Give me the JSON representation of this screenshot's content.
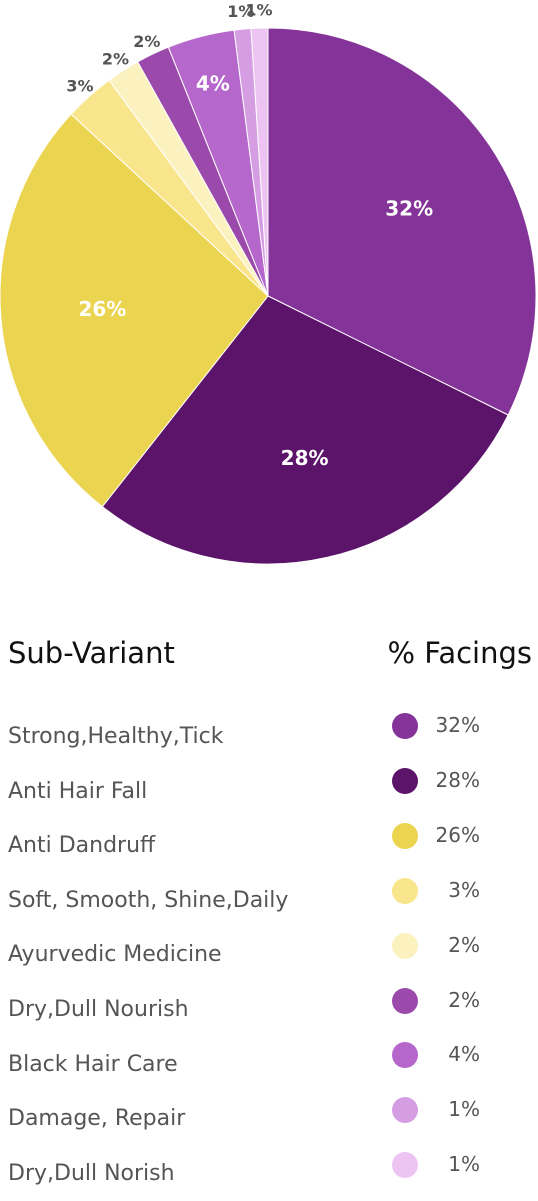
{
  "chart_data": {
    "type": "pie",
    "slices": [
      {
        "name": "Strong,Healthy,Tick",
        "value": 32,
        "label": "32%",
        "color": "#843399"
      },
      {
        "name": "Anti Hair Fall",
        "value": 28,
        "label": "28%",
        "color": "#5c136a"
      },
      {
        "name": "Anti Dandruff",
        "value": 26,
        "label": "26%",
        "color": "#ebd44f"
      },
      {
        "name": "Soft, Smooth, Shine,Daily",
        "value": 3,
        "label": "3%",
        "color": "#f9e68c"
      },
      {
        "name": "Ayurvedic Medicine",
        "value": 2,
        "label": "2%",
        "color": "#fbf2c0"
      },
      {
        "name": "Dry,Dull Nourish",
        "value": 2,
        "label": "2%",
        "color": "#9b4aab"
      },
      {
        "name": "Black Hair Care",
        "value": 4,
        "label": "4%",
        "color": "#b567cc"
      },
      {
        "name": "Damage, Repair",
        "value": 1,
        "label": "1%",
        "color": "#d59ee2"
      },
      {
        "name": "Dry,Dull Norish",
        "value": 1,
        "label": "1%",
        "color": "#ecc3f1"
      }
    ]
  },
  "legend": {
    "header_left": "Sub-Variant",
    "header_right": "% Facings"
  }
}
